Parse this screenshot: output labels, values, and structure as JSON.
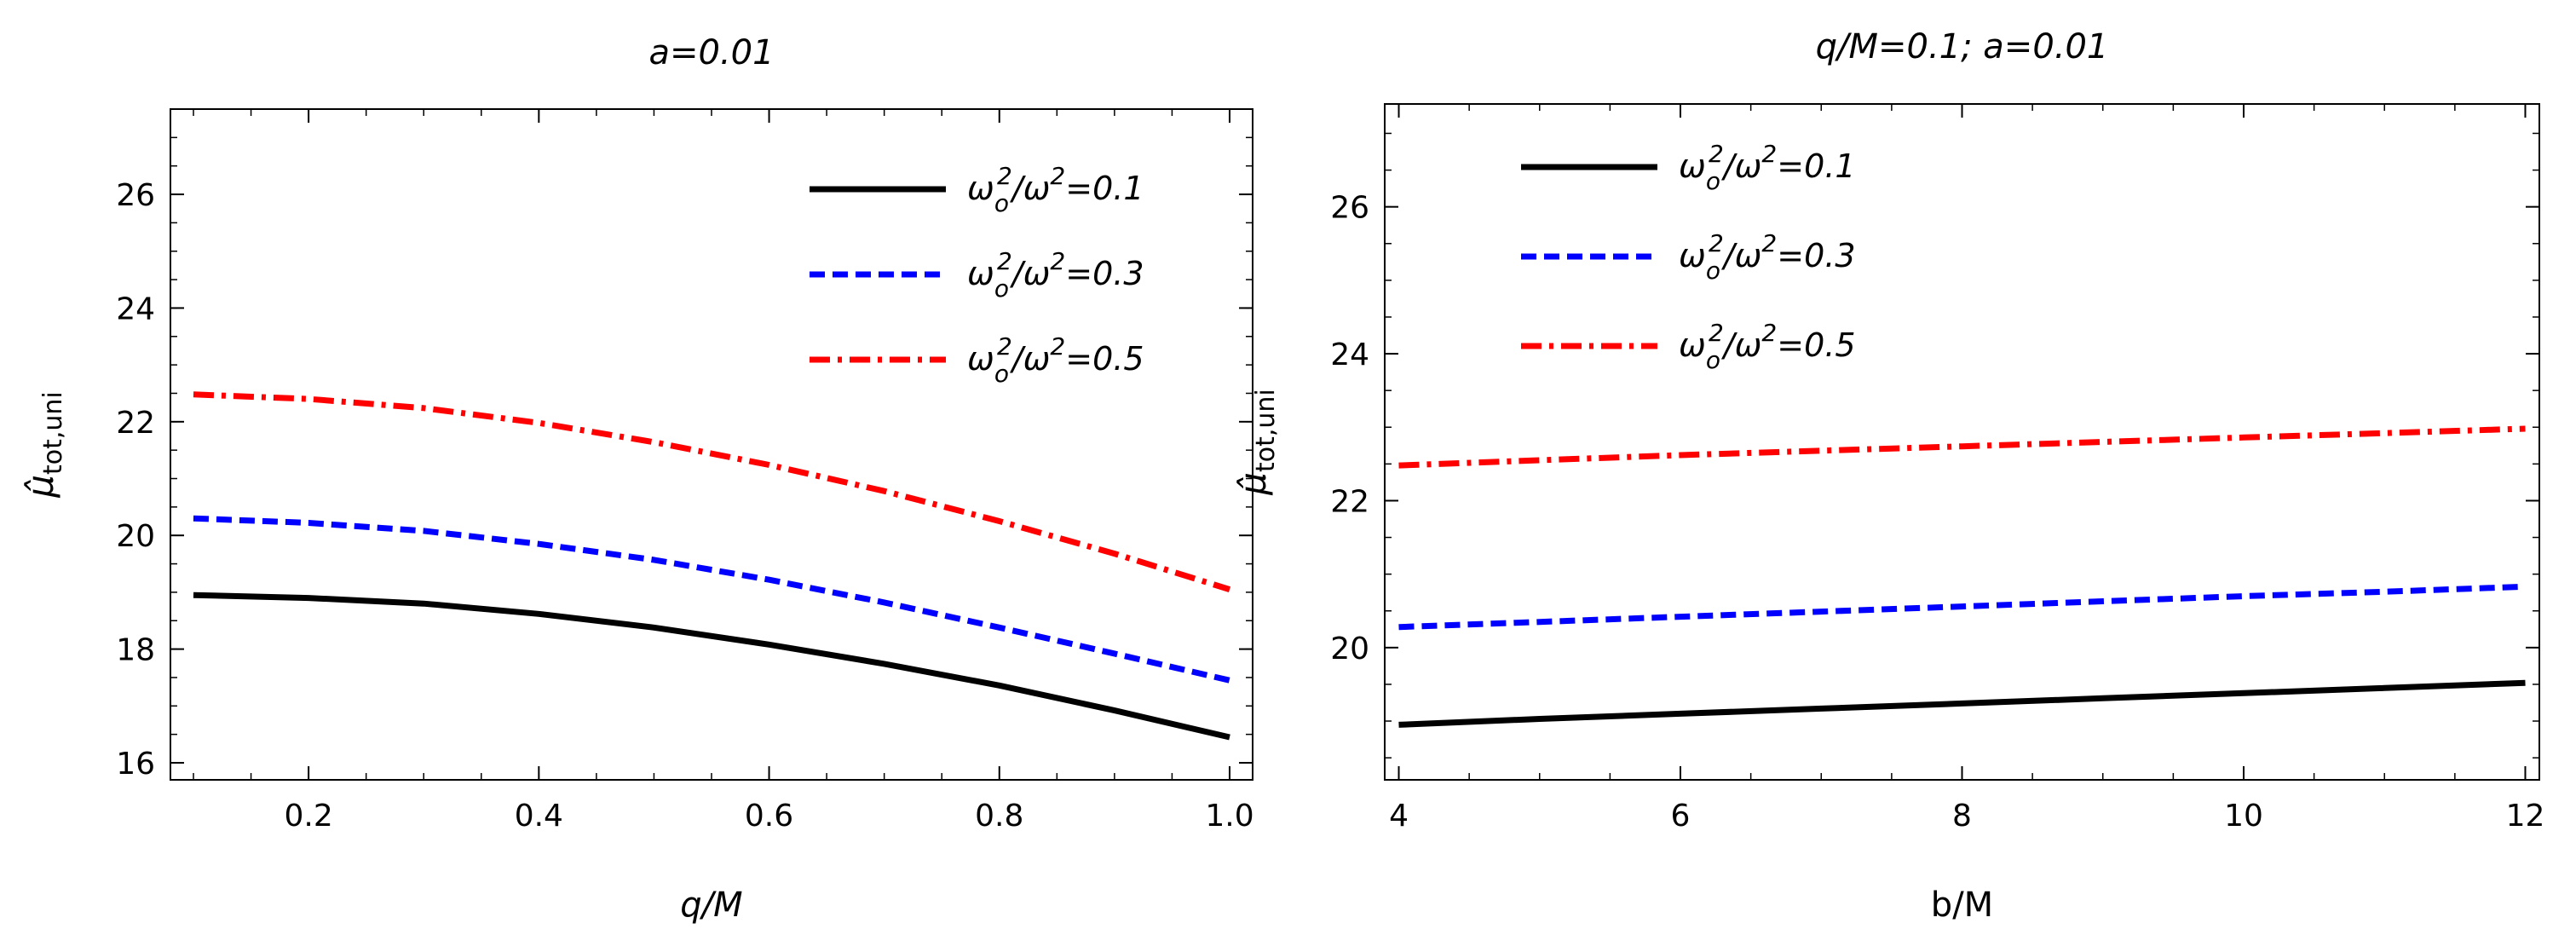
{
  "chart_data": [
    {
      "type": "line",
      "title": "a=0.01",
      "xlabel": "q/M",
      "ylabel": "μ̂",
      "ylabel_sub": "tot,uni",
      "xlim": [
        0.08,
        1.02
      ],
      "ylim": [
        15.7,
        27.5
      ],
      "xticks": [
        0.2,
        0.4,
        0.6,
        0.8,
        1.0
      ],
      "xtick_labels": [
        "0.2",
        "0.4",
        "0.6",
        "0.8",
        "1.0"
      ],
      "yticks": [
        16,
        18,
        20,
        22,
        24,
        26
      ],
      "ytick_labels": [
        "16",
        "18",
        "20",
        "22",
        "24",
        "26"
      ],
      "legend_position": "top-right",
      "x": [
        0.1,
        0.2,
        0.3,
        0.4,
        0.5,
        0.6,
        0.7,
        0.8,
        0.9,
        1.0
      ],
      "series": [
        {
          "name": "ω_o²/ω² = 0.1",
          "legend_label": "ω",
          "legend_sub": "o",
          "legend_sup1": "2",
          "legend_mid": "/ω",
          "legend_sup2": "2",
          "legend_eq": "=0.1",
          "color": "#000000",
          "dash": "solid",
          "values": [
            18.95,
            18.9,
            18.8,
            18.62,
            18.38,
            18.08,
            17.74,
            17.36,
            16.92,
            16.45
          ]
        },
        {
          "name": "ω_o²/ω² = 0.3",
          "legend_label": "ω",
          "legend_sub": "o",
          "legend_sup1": "2",
          "legend_mid": "/ω",
          "legend_sup2": "2",
          "legend_eq": "=0.3",
          "color": "#0000ff",
          "dash": "dashed",
          "values": [
            20.3,
            20.22,
            20.08,
            19.85,
            19.57,
            19.22,
            18.82,
            18.38,
            17.92,
            17.45
          ]
        },
        {
          "name": "ω_o²/ω² = 0.5",
          "legend_label": "ω",
          "legend_sub": "o",
          "legend_sup1": "2",
          "legend_mid": "/ω",
          "legend_sup2": "2",
          "legend_eq": "=0.5",
          "color": "#ff0000",
          "dash": "dashdot",
          "values": [
            22.48,
            22.4,
            22.24,
            21.98,
            21.64,
            21.24,
            20.78,
            20.25,
            19.68,
            19.05
          ]
        }
      ]
    },
    {
      "type": "line",
      "title": "q/M=0.1;  a=0.01",
      "xlabel": "b/M",
      "ylabel": "μ̂",
      "ylabel_sub": "tot,uni",
      "xlim": [
        3.9,
        12.1
      ],
      "ylim": [
        18.2,
        27.4
      ],
      "xticks": [
        4,
        6,
        8,
        10,
        12
      ],
      "xtick_labels": [
        "4",
        "6",
        "8",
        "10",
        "12"
      ],
      "yticks": [
        20,
        22,
        24,
        26
      ],
      "ytick_labels": [
        "20",
        "22",
        "24",
        "26"
      ],
      "legend_position": "top-left",
      "x": [
        4,
        5,
        6,
        7,
        8,
        9,
        10,
        11,
        12
      ],
      "series": [
        {
          "name": "ω_o²/ω² = 0.1",
          "legend_label": "ω",
          "legend_sub": "o",
          "legend_sup1": "2",
          "legend_mid": "/ω",
          "legend_sup2": "2",
          "legend_eq": "=0.1",
          "color": "#000000",
          "dash": "solid",
          "values": [
            18.95,
            19.03,
            19.1,
            19.17,
            19.24,
            19.31,
            19.38,
            19.45,
            19.52
          ]
        },
        {
          "name": "ω_o²/ω² = 0.3",
          "legend_label": "ω",
          "legend_sub": "o",
          "legend_sup1": "2",
          "legend_mid": "/ω",
          "legend_sup2": "2",
          "legend_eq": "=0.3",
          "color": "#0000ff",
          "dash": "dashed",
          "values": [
            20.28,
            20.35,
            20.42,
            20.49,
            20.56,
            20.63,
            20.7,
            20.76,
            20.83
          ]
        },
        {
          "name": "ω_o²/ω² = 0.5",
          "legend_label": "ω",
          "legend_sub": "o",
          "legend_sup1": "2",
          "legend_mid": "/ω",
          "legend_sup2": "2",
          "legend_eq": "=0.5",
          "color": "#ff0000",
          "dash": "dashdot",
          "values": [
            22.48,
            22.55,
            22.62,
            22.68,
            22.74,
            22.8,
            22.86,
            22.92,
            22.98
          ]
        }
      ]
    }
  ]
}
